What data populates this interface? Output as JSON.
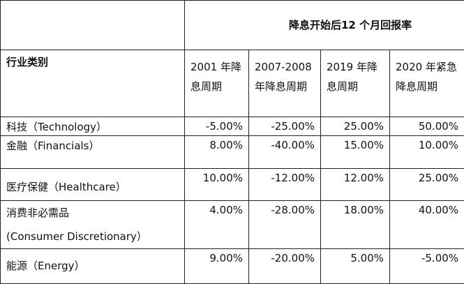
{
  "table": {
    "title": "降息开始后12 个月回报率",
    "category_header": "行业类别",
    "period_headers": [
      "2001 年降息周期",
      "2007-2008 年降息周期",
      "2019 年降息周期",
      "2020 年紧急降息周期"
    ],
    "rows": [
      {
        "label": "科技（Technology）",
        "values": [
          "-5.00%",
          "-25.00%",
          "25.00%",
          "50.00%"
        ]
      },
      {
        "label": "金融（Financials）",
        "values": [
          "8.00%",
          "-40.00%",
          "15.00%",
          "10.00%"
        ]
      },
      {
        "label": "医疗保健（Healthcare）",
        "values": [
          "10.00%",
          "-12.00%",
          "12.00%",
          "25.00%"
        ]
      },
      {
        "label": "消费非必需品",
        "label_line2": "(Consumer Discretionary）",
        "values": [
          "4.00%",
          "-28.00%",
          "18.00%",
          "40.00%"
        ]
      },
      {
        "label": "能源（Energy）",
        "values": [
          "9.00%",
          "-20.00%",
          "5.00%",
          "-5.00%"
        ]
      }
    ]
  }
}
